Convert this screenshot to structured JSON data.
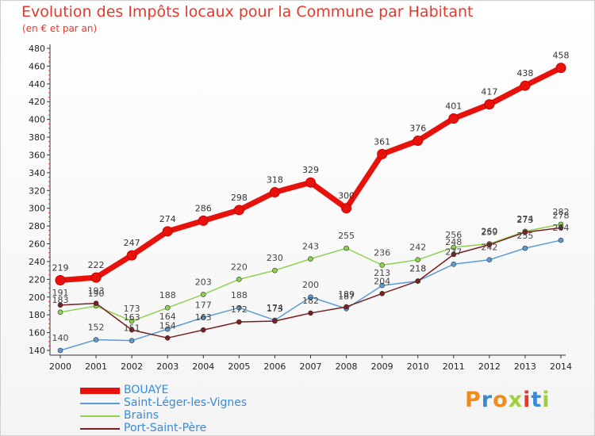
{
  "title": "Evolution des Impôts locaux pour la Commune par Habitant",
  "subtitle": "(en € et par an)",
  "logo": {
    "text": "Proxiti",
    "colors": [
      "#f08a1a",
      "#3a8bd6",
      "#f08a1a",
      "#9fcf3b",
      "#e8382a",
      "#3a8bd6",
      "#9fcf3b"
    ]
  },
  "chart_data": {
    "type": "line",
    "x": [
      2000,
      2001,
      2002,
      2003,
      2004,
      2005,
      2006,
      2007,
      2008,
      2009,
      2010,
      2011,
      2012,
      2013,
      2014
    ],
    "ylim": [
      140,
      480
    ],
    "yticks": [
      140,
      160,
      180,
      200,
      220,
      240,
      260,
      280,
      300,
      320,
      340,
      360,
      380,
      400,
      420,
      440,
      460,
      480
    ],
    "series": [
      {
        "name": "BOUAYE",
        "color": "#e8120c",
        "values": [
          219,
          222,
          247,
          274,
          286,
          298,
          318,
          329,
          300,
          361,
          376,
          401,
          417,
          438,
          458
        ]
      },
      {
        "name": "Saint-Léger-les-Vignes",
        "color": "#5b9bd5",
        "values": [
          140,
          152,
          151,
          164,
          177,
          188,
          174,
          200,
          187,
          213,
          218,
          237,
          242,
          255,
          264
        ]
      },
      {
        "name": "Brains",
        "color": "#8fd14f",
        "values": [
          183,
          190,
          173,
          188,
          203,
          220,
          230,
          243,
          255,
          236,
          242,
          256,
          260,
          274,
          282
        ]
      },
      {
        "name": "Port-Saint-Père",
        "color": "#7a1f1f",
        "values": [
          191,
          193,
          163,
          154,
          163,
          172,
          173,
          182,
          189,
          204,
          218,
          248,
          259,
          273,
          278
        ]
      }
    ],
    "point_labels": [
      [
        "219",
        "222",
        "247",
        "274",
        "286",
        "298",
        "318",
        "329",
        "300",
        "361",
        "376",
        "401",
        "417",
        "438",
        "458"
      ],
      [
        "140",
        "152",
        "151",
        "164",
        "177",
        "188",
        "174",
        "200",
        "187",
        "213",
        "218",
        "237",
        "242",
        "255",
        "264"
      ],
      [
        "183",
        "190",
        "173",
        "188",
        "203",
        "220",
        "230",
        "243",
        "255",
        "236",
        "242",
        "256",
        "260",
        "274",
        "282"
      ],
      [
        "191",
        "193",
        "163",
        "154",
        "163",
        "172",
        "173",
        "182",
        "189",
        "204",
        "218",
        "248",
        "259",
        "273",
        "278"
      ]
    ],
    "grid": false,
    "legend_position": "bottom-left"
  }
}
